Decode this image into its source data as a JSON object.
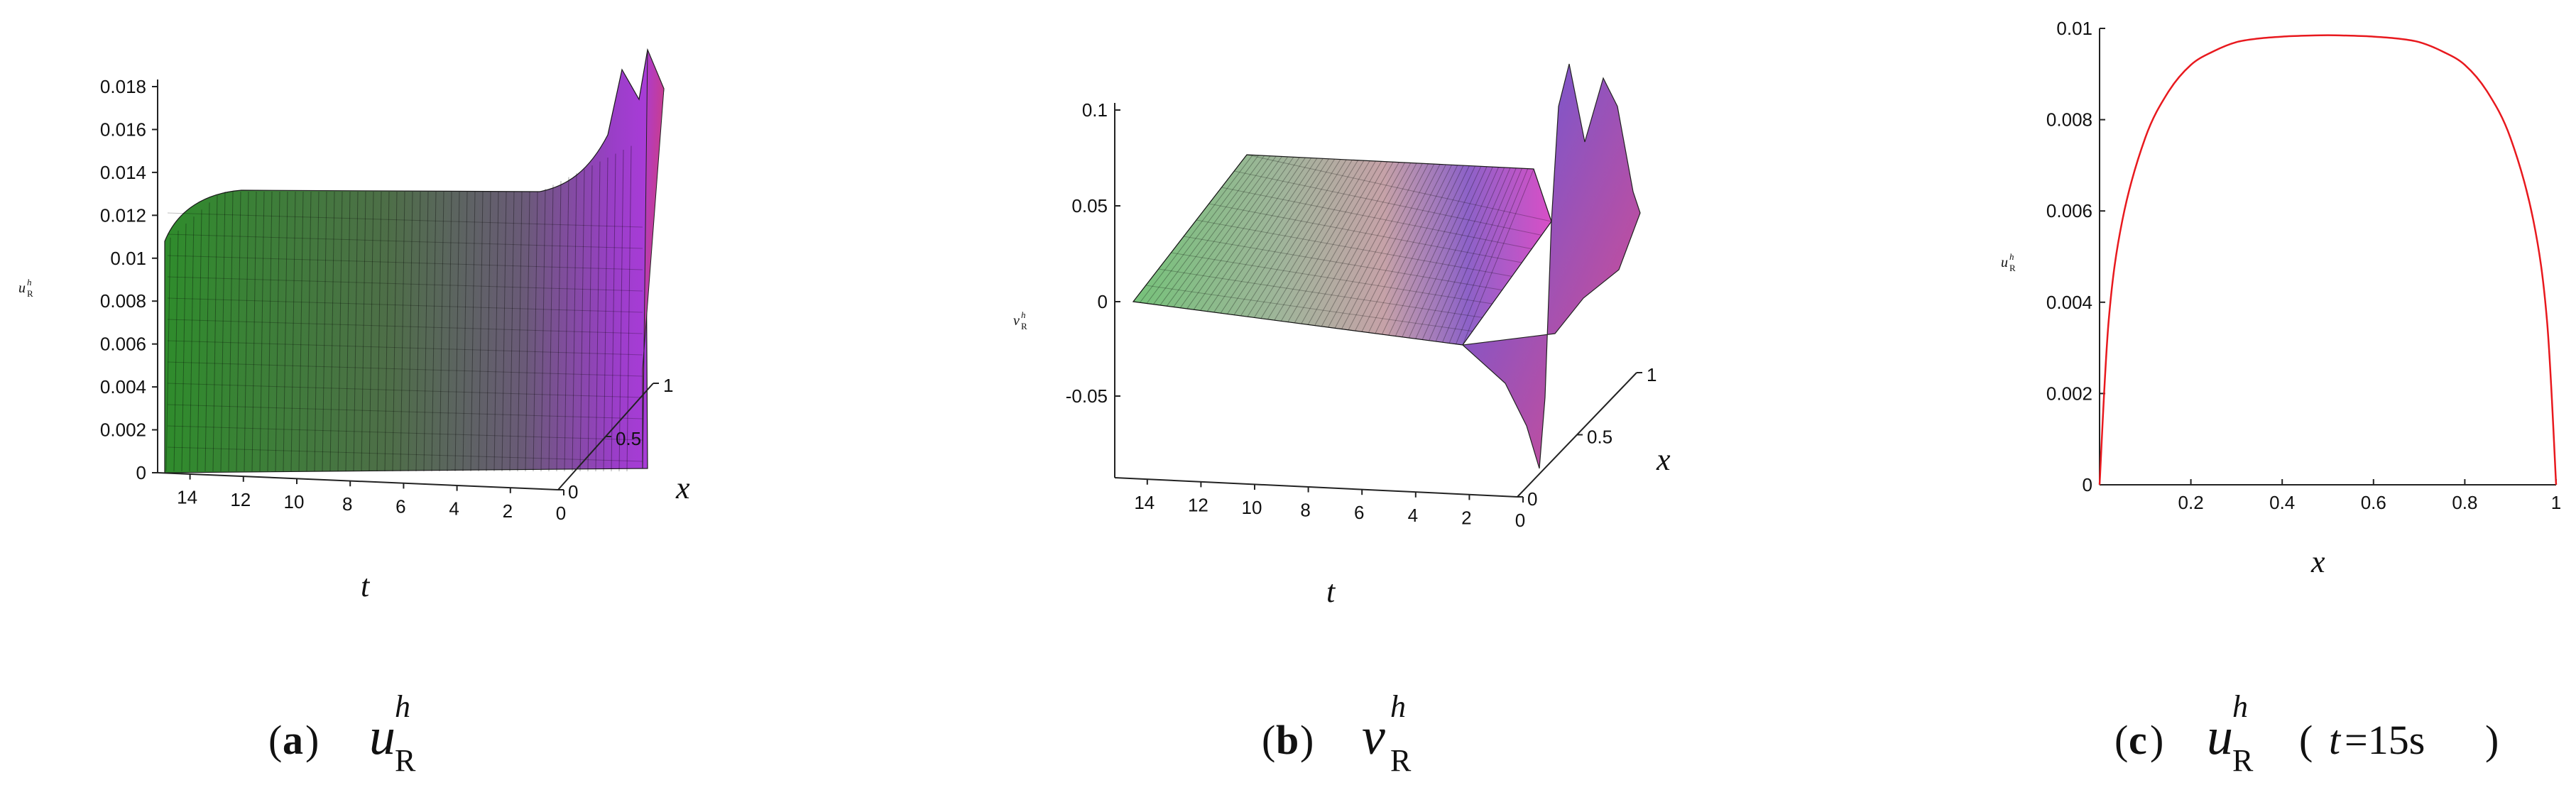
{
  "chart_data": [
    {
      "panel": "a",
      "type": "surface3d",
      "caption": {
        "letter": "a",
        "var": "u",
        "sup": "h",
        "sub": "R"
      },
      "xlabel": "x",
      "tlabel": "t",
      "zlabel": {
        "var": "u",
        "sup": "h",
        "sub": "R"
      },
      "x_ticks": [
        "0",
        "0.5",
        "1"
      ],
      "t_ticks": [
        "14",
        "12",
        "10",
        "8",
        "6",
        "4",
        "2",
        "0"
      ],
      "z_ticks": [
        "0",
        "0.002",
        "0.004",
        "0.006",
        "0.008",
        "0.01",
        "0.012",
        "0.014",
        "0.016",
        "0.018"
      ],
      "xlim": [
        0,
        1
      ],
      "tlim": [
        0,
        15
      ],
      "zlim": [
        0,
        0.018
      ]
    },
    {
      "panel": "b",
      "type": "surface3d",
      "caption": {
        "letter": "b",
        "var": "v",
        "sup": "h",
        "sub": "R"
      },
      "xlabel": "x",
      "tlabel": "t",
      "zlabel": {
        "var": "v",
        "sup": "h",
        "sub": "R"
      },
      "x_ticks": [
        "0",
        "0.5",
        "1"
      ],
      "t_ticks": [
        "14",
        "12",
        "10",
        "8",
        "6",
        "4",
        "2",
        "0"
      ],
      "z_ticks": [
        "-0.05",
        "0",
        "0.05",
        "0.1"
      ],
      "xlim": [
        0,
        1
      ],
      "tlim": [
        0,
        15
      ],
      "zlim": [
        -0.09,
        0.11
      ]
    },
    {
      "panel": "c",
      "type": "line",
      "caption": {
        "letter": "c",
        "var": "u",
        "sup": "h",
        "sub": "R",
        "cond_var": "t",
        "cond_rest": "=15s"
      },
      "xlabel": "x",
      "ylabel": {
        "var": "u",
        "sup": "h",
        "sub": "R"
      },
      "x_ticks": [
        "0.2",
        "0.4",
        "0.6",
        "0.8",
        "1"
      ],
      "y_ticks": [
        "0",
        "0.002",
        "0.004",
        "0.006",
        "0.008",
        "0.01"
      ],
      "xlim": [
        0,
        1
      ],
      "ylim": [
        0,
        0.01
      ],
      "line_color": "#e8191e",
      "x": [
        0,
        0.02,
        0.05,
        0.1,
        0.15,
        0.2,
        0.25,
        0.3,
        0.35,
        0.4,
        0.45,
        0.5,
        0.55,
        0.6,
        0.65,
        0.7,
        0.75,
        0.8,
        0.85,
        0.9,
        0.95,
        0.98,
        1
      ],
      "y": [
        0,
        0.0036,
        0.0058,
        0.0076,
        0.0086,
        0.0092,
        0.0095,
        0.0097,
        0.00978,
        0.00982,
        0.00984,
        0.00985,
        0.00984,
        0.00982,
        0.00978,
        0.0097,
        0.0095,
        0.0092,
        0.0086,
        0.0076,
        0.0058,
        0.0036,
        0
      ]
    }
  ]
}
